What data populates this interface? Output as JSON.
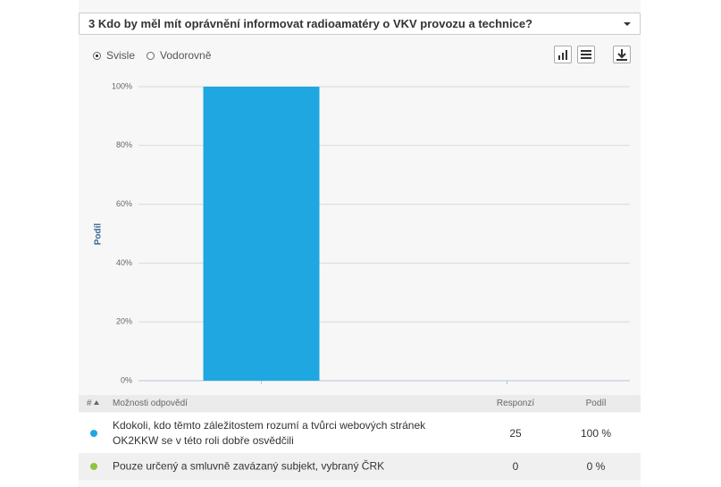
{
  "header": {
    "question": "3 Kdo by měl mít oprávnění informovat radioamatéry o VKV provozu a technice?"
  },
  "orientation": {
    "options": [
      "Svisle",
      "Vodorovně"
    ],
    "selected": 0
  },
  "chart_data": {
    "type": "bar",
    "ylabel": "Podíl",
    "categories": [
      null,
      null
    ],
    "values": [
      100,
      0
    ],
    "colors": [
      "#1ea7e1",
      "#8dc63f"
    ],
    "ylim": [
      0,
      100
    ],
    "yticks": [
      {
        "value": 0,
        "label": "0%"
      },
      {
        "value": 20,
        "label": "20%"
      },
      {
        "value": 40,
        "label": "40%"
      },
      {
        "value": 60,
        "label": "60%"
      },
      {
        "value": 80,
        "label": "80%"
      },
      {
        "value": 100,
        "label": "100%"
      }
    ],
    "grid": true
  },
  "table": {
    "columns": [
      "#",
      "Možnosti odpovědí",
      "Responzí",
      "Podíl"
    ],
    "rows": [
      [
        "Kdokoli, kdo těmto záležitostem rozumí a tvůrci webových stránek OK2KKW se v této roli dobře osvědčili",
        25,
        "100 %"
      ],
      [
        "Pouze určený a smluvně zavázaný subjekt, vybraný ČRK",
        0,
        "0 %"
      ]
    ]
  }
}
